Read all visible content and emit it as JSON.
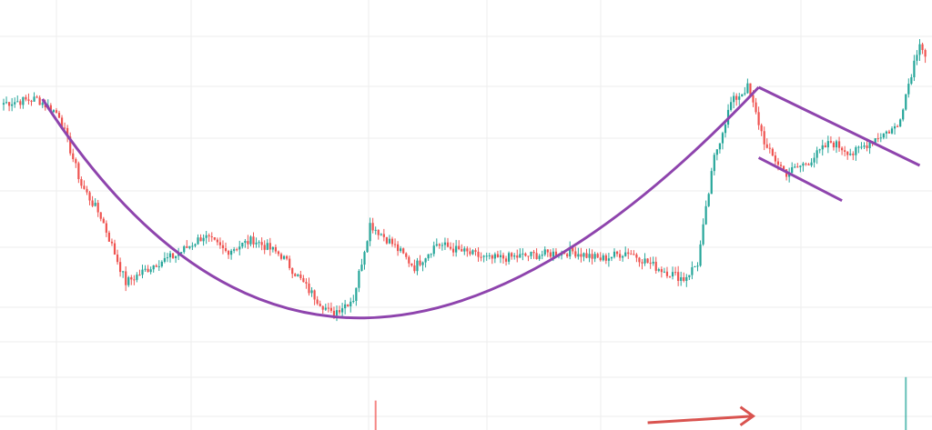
{
  "chart_data": {
    "type": "candlestick",
    "title": "",
    "xlabel": "",
    "ylabel": "",
    "grid": true,
    "legend": "none",
    "ylim": [
      0,
      100
    ],
    "colors": {
      "up": "#26a69a",
      "down": "#ef5350",
      "pattern": "#8e44ad",
      "arrow": "#d9534f",
      "grid": "#eeeeee"
    },
    "price_anchors": [
      [
        0,
        76
      ],
      [
        12,
        77
      ],
      [
        20,
        73
      ],
      [
        28,
        55
      ],
      [
        35,
        47
      ],
      [
        44,
        30
      ],
      [
        55,
        35
      ],
      [
        62,
        37
      ],
      [
        72,
        42
      ],
      [
        80,
        38
      ],
      [
        90,
        41
      ],
      [
        100,
        37
      ],
      [
        110,
        28
      ],
      [
        118,
        22
      ],
      [
        126,
        26
      ],
      [
        132,
        45
      ],
      [
        140,
        40
      ],
      [
        148,
        34
      ],
      [
        156,
        40
      ],
      [
        165,
        38
      ],
      [
        175,
        36
      ],
      [
        190,
        37
      ],
      [
        205,
        38
      ],
      [
        215,
        36
      ],
      [
        225,
        38
      ],
      [
        235,
        34
      ],
      [
        245,
        31
      ],
      [
        250,
        35
      ],
      [
        256,
        62
      ],
      [
        262,
        76
      ],
      [
        268,
        80
      ],
      [
        275,
        64
      ],
      [
        282,
        58
      ],
      [
        290,
        61
      ],
      [
        298,
        66
      ],
      [
        306,
        63
      ],
      [
        314,
        67
      ],
      [
        322,
        70
      ],
      [
        330,
        92
      ],
      [
        332,
        88
      ]
    ],
    "volume_spikes": [
      {
        "index": 134,
        "value": 8,
        "direction": "down"
      },
      {
        "index": 325,
        "value": 14,
        "direction": "up"
      }
    ],
    "patterns": [
      {
        "type": "cup",
        "points": [
          [
            14,
            77
          ],
          [
            130,
            21
          ],
          [
            272,
            80
          ]
        ]
      },
      {
        "type": "handle-upper",
        "points": [
          [
            272,
            80
          ],
          [
            330,
            60
          ]
        ]
      },
      {
        "type": "handle-lower",
        "points": [
          [
            272,
            62
          ],
          [
            302,
            51
          ]
        ]
      },
      {
        "type": "arrow",
        "points": [
          [
            232,
            0
          ],
          [
            270,
            1
          ]
        ]
      }
    ]
  }
}
